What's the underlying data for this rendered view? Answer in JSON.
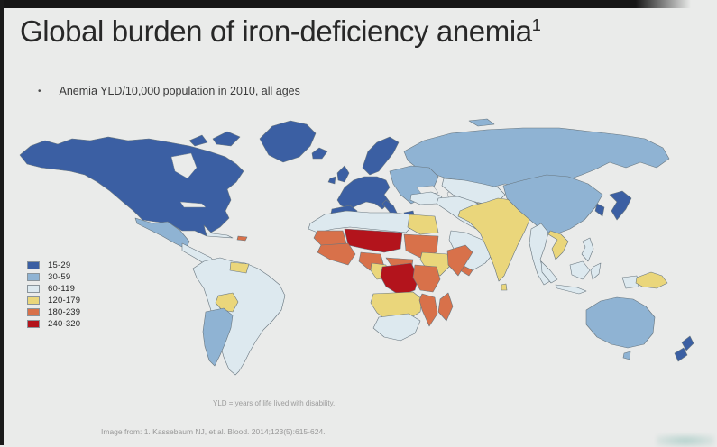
{
  "slide": {
    "title": {
      "text": "Global burden of iron-deficiency anemia",
      "superscript": "1"
    },
    "bullet": "Anemia YLD/10,000 population in 2010, all ages",
    "bullet_marker": "•",
    "footnotes": {
      "abbreviation": "YLD = years of life lived with disability.",
      "source": "Image from: 1. Kassebaum NJ, et al. Blood. 2014;123(5):615-624."
    }
  },
  "colors": {
    "slide_background": "#eaebea",
    "top_bar": "#161616",
    "title_text": "#282828",
    "footnote_text": "#9c9c9c",
    "map_border_lines": "#68767f"
  },
  "chart_data": {
    "type": "heatmap",
    "subtype": "world-choropleth",
    "title": "Anemia YLD/10,000 population in 2010, all ages",
    "metric": "Anemia YLD per 10,000 population",
    "year": "2010",
    "legend": {
      "position": "middle-left",
      "bins": [
        {
          "label": "15-29",
          "color": "#3b5fa3"
        },
        {
          "label": "30-59",
          "color": "#8fb3d3"
        },
        {
          "label": "60-119",
          "color": "#dde9ef"
        },
        {
          "label": "120-179",
          "color": "#ead67b"
        },
        {
          "label": "180-239",
          "color": "#d8714a"
        },
        {
          "label": "240-320",
          "color": "#b3141c"
        }
      ]
    },
    "regions": [
      {
        "id": "greenland",
        "name": "Greenland",
        "bin": "15-29"
      },
      {
        "id": "north-america",
        "name": "Canada / United States / Alaska",
        "bin": "15-29"
      },
      {
        "id": "arctic-islands",
        "name": "Canadian Arctic islands",
        "bin": "15-29"
      },
      {
        "id": "mexico",
        "name": "Mexico",
        "bin": "30-59"
      },
      {
        "id": "central-america",
        "name": "Central America",
        "bin": "60-119"
      },
      {
        "id": "cuba",
        "name": "Cuba",
        "bin": "60-119"
      },
      {
        "id": "hispaniola",
        "name": "Haiti / Dominican Republic",
        "bin": "180-239"
      },
      {
        "id": "south-america",
        "name": "South America (most)",
        "bin": "60-119"
      },
      {
        "id": "guyana",
        "name": "Guyana / Suriname",
        "bin": "120-179"
      },
      {
        "id": "bolivia",
        "name": "Bolivia",
        "bin": "120-179"
      },
      {
        "id": "argentina",
        "name": "Argentina / Chile",
        "bin": "30-59"
      },
      {
        "id": "iceland",
        "name": "Iceland",
        "bin": "15-29"
      },
      {
        "id": "uk-ireland",
        "name": "United Kingdom / Ireland",
        "bin": "15-29"
      },
      {
        "id": "western-europe",
        "name": "Western Europe",
        "bin": "15-29"
      },
      {
        "id": "scandinavia",
        "name": "Scandinavia",
        "bin": "15-29"
      },
      {
        "id": "greece",
        "name": "Greece",
        "bin": "15-29"
      },
      {
        "id": "eastern-europe",
        "name": "Eastern Europe / Balkans",
        "bin": "30-59"
      },
      {
        "id": "russia",
        "name": "Russia",
        "bin": "30-59"
      },
      {
        "id": "kazakhstan",
        "name": "Kazakhstan",
        "bin": "60-119"
      },
      {
        "id": "central-asia-south",
        "name": "Turkmenistan / Uzbekistan",
        "bin": "120-179"
      },
      {
        "id": "turkey",
        "name": "Turkey",
        "bin": "60-119"
      },
      {
        "id": "iran-iraq",
        "name": "Iran / Iraq / Levant",
        "bin": "60-119"
      },
      {
        "id": "arabia",
        "name": "Arabian Peninsula",
        "bin": "60-119"
      },
      {
        "id": "yemen",
        "name": "Yemen",
        "bin": "180-239"
      },
      {
        "id": "india-pakistan",
        "name": "India / Pakistan / Afghanistan",
        "bin": "120-179"
      },
      {
        "id": "china-mongolia",
        "name": "China / Mongolia",
        "bin": "30-59"
      },
      {
        "id": "korea",
        "name": "Korea",
        "bin": "15-29"
      },
      {
        "id": "japan",
        "name": "Japan",
        "bin": "15-29"
      },
      {
        "id": "myanmar-thailand",
        "name": "Myanmar / Thailand",
        "bin": "60-119"
      },
      {
        "id": "vietnam-laos",
        "name": "Vietnam / Laos",
        "bin": "120-179"
      },
      {
        "id": "indonesia",
        "name": "Indonesia / Malaysia",
        "bin": "60-119"
      },
      {
        "id": "philippines",
        "name": "Philippines",
        "bin": "60-119"
      },
      {
        "id": "papua-new-guinea",
        "name": "Papua New Guinea",
        "bin": "120-179"
      },
      {
        "id": "australia",
        "name": "Australia",
        "bin": "30-59"
      },
      {
        "id": "new-zealand",
        "name": "New Zealand",
        "bin": "15-29"
      },
      {
        "id": "north-africa",
        "name": "North Africa (Morocco–Libya)",
        "bin": "60-119"
      },
      {
        "id": "egypt",
        "name": "Egypt",
        "bin": "120-179"
      },
      {
        "id": "mauritania-senegal",
        "name": "Mauritania / Senegal",
        "bin": "180-239"
      },
      {
        "id": "sahel",
        "name": "Mali / Niger / Chad",
        "bin": "240-320"
      },
      {
        "id": "sudan",
        "name": "Sudan",
        "bin": "180-239"
      },
      {
        "id": "west-africa",
        "name": "West African coast (Guinea–Ghana)",
        "bin": "180-239"
      },
      {
        "id": "nigeria",
        "name": "Nigeria",
        "bin": "180-239"
      },
      {
        "id": "cameroon",
        "name": "Cameroon",
        "bin": "120-179"
      },
      {
        "id": "central-african-republic",
        "name": "Central African Republic",
        "bin": "180-239"
      },
      {
        "id": "ethiopia",
        "name": "Ethiopia",
        "bin": "120-179"
      },
      {
        "id": "somalia",
        "name": "Somalia",
        "bin": "180-239"
      },
      {
        "id": "dr-congo",
        "name": "DR Congo",
        "bin": "240-320"
      },
      {
        "id": "east-africa",
        "name": "Kenya / Tanzania / Uganda",
        "bin": "180-239"
      },
      {
        "id": "angola-zambia",
        "name": "Angola / Zambia / Zimbabwe",
        "bin": "120-179"
      },
      {
        "id": "mozambique",
        "name": "Mozambique",
        "bin": "180-239"
      },
      {
        "id": "madagascar",
        "name": "Madagascar",
        "bin": "180-239"
      },
      {
        "id": "south-africa",
        "name": "South Africa / Namibia",
        "bin": "60-119"
      }
    ]
  }
}
